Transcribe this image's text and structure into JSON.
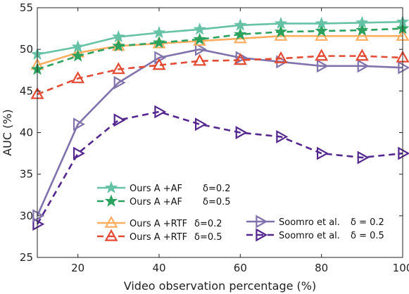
{
  "chart_data": {
    "type": "line",
    "xlabel": "Video observation percentage (%)",
    "ylabel": "AUC (%)",
    "xlim": [
      10,
      100
    ],
    "ylim": [
      25,
      55
    ],
    "xticks": [
      20,
      40,
      60,
      80,
      100
    ],
    "yticks": [
      25,
      30,
      35,
      40,
      45,
      50,
      55
    ],
    "grid": false,
    "x": [
      10,
      20,
      30,
      40,
      50,
      60,
      70,
      80,
      90,
      100
    ],
    "series": [
      {
        "name": "Ours A +AF",
        "delta": "δ=0.2",
        "color": "#66c2a5",
        "dash": false,
        "marker": "star",
        "values": [
          49.4,
          50.3,
          51.5,
          52.0,
          52.4,
          52.9,
          53.1,
          53.1,
          53.2,
          53.3
        ]
      },
      {
        "name": "Ours A +AF",
        "delta": "δ=0.5",
        "color": "#2ca25f",
        "dash": true,
        "marker": "star",
        "values": [
          47.6,
          49.2,
          50.4,
          50.8,
          51.2,
          51.8,
          52.1,
          52.2,
          52.3,
          52.5
        ]
      },
      {
        "name": "Ours A +RTF",
        "delta": "δ=0.2",
        "color": "#fdae61",
        "dash": false,
        "marker": "triangle-up",
        "values": [
          48.1,
          49.6,
          50.4,
          50.7,
          51.0,
          51.3,
          51.6,
          51.6,
          51.6,
          51.6
        ]
      },
      {
        "name": "Ours A +RTF",
        "delta": "δ=0.5",
        "color": "#e34a33",
        "dash": true,
        "marker": "triangle-up",
        "values": [
          44.6,
          46.5,
          47.6,
          48.1,
          48.6,
          48.7,
          48.9,
          49.2,
          49.2,
          49.0
        ]
      },
      {
        "name": "Soomro et al.",
        "delta": "δ = 0.2",
        "color": "#8073ac",
        "dash": false,
        "marker": "triangle-right",
        "values": [
          30.0,
          41.0,
          46.0,
          49.0,
          50.0,
          49.0,
          48.5,
          48.0,
          48.0,
          47.8
        ]
      },
      {
        "name": "Soomro et al.",
        "delta": "δ = 0.5",
        "color": "#54278f",
        "dash": true,
        "marker": "triangle-right",
        "values": [
          29.0,
          37.5,
          41.5,
          42.5,
          41.0,
          40.0,
          39.5,
          37.5,
          37.0,
          37.5
        ]
      }
    ]
  }
}
